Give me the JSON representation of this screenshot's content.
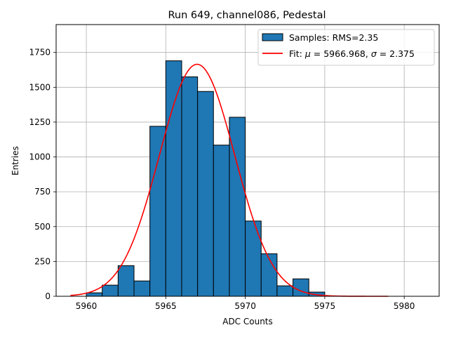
{
  "chart_data": {
    "type": "bar",
    "title": "Run 649, channel086, Pedestal",
    "xlabel": "ADC Counts",
    "ylabel": "Entries",
    "xlim": [
      5958.1,
      5982.2
    ],
    "ylim": [
      0,
      1950
    ],
    "grid": true,
    "legend_position": "top-right",
    "x_ticks": [
      5960,
      5965,
      5970,
      5975,
      5980
    ],
    "y_ticks": [
      0,
      250,
      500,
      750,
      1000,
      1250,
      1500,
      1750
    ],
    "histogram": {
      "name": "Samples: RMS=2.35",
      "color": "#1f77b4",
      "edgecolor": "#000000",
      "bin_edges": [
        5960,
        5961,
        5962,
        5963,
        5964,
        5965,
        5966,
        5967,
        5968,
        5969,
        5970,
        5971,
        5972,
        5973,
        5974,
        5975
      ],
      "counts": [
        25,
        80,
        220,
        110,
        1220,
        1690,
        1575,
        1470,
        1085,
        1285,
        540,
        305,
        75,
        125,
        30
      ]
    },
    "fit": {
      "name": "Fit: μ = 5966.968, σ = 2.375",
      "color": "#ff0000",
      "mu": 5966.968,
      "sigma": 2.375,
      "amplitude": 1665,
      "x_range": [
        5959,
        5979
      ]
    },
    "legend": {
      "hist_prefix": "Samples: RMS=2.35",
      "fit_prefix": "Fit: ",
      "mu_symbol": "μ",
      "mu_value": " = 5966.968, ",
      "sigma_symbol": "σ",
      "sigma_value": " = 2.375"
    }
  }
}
